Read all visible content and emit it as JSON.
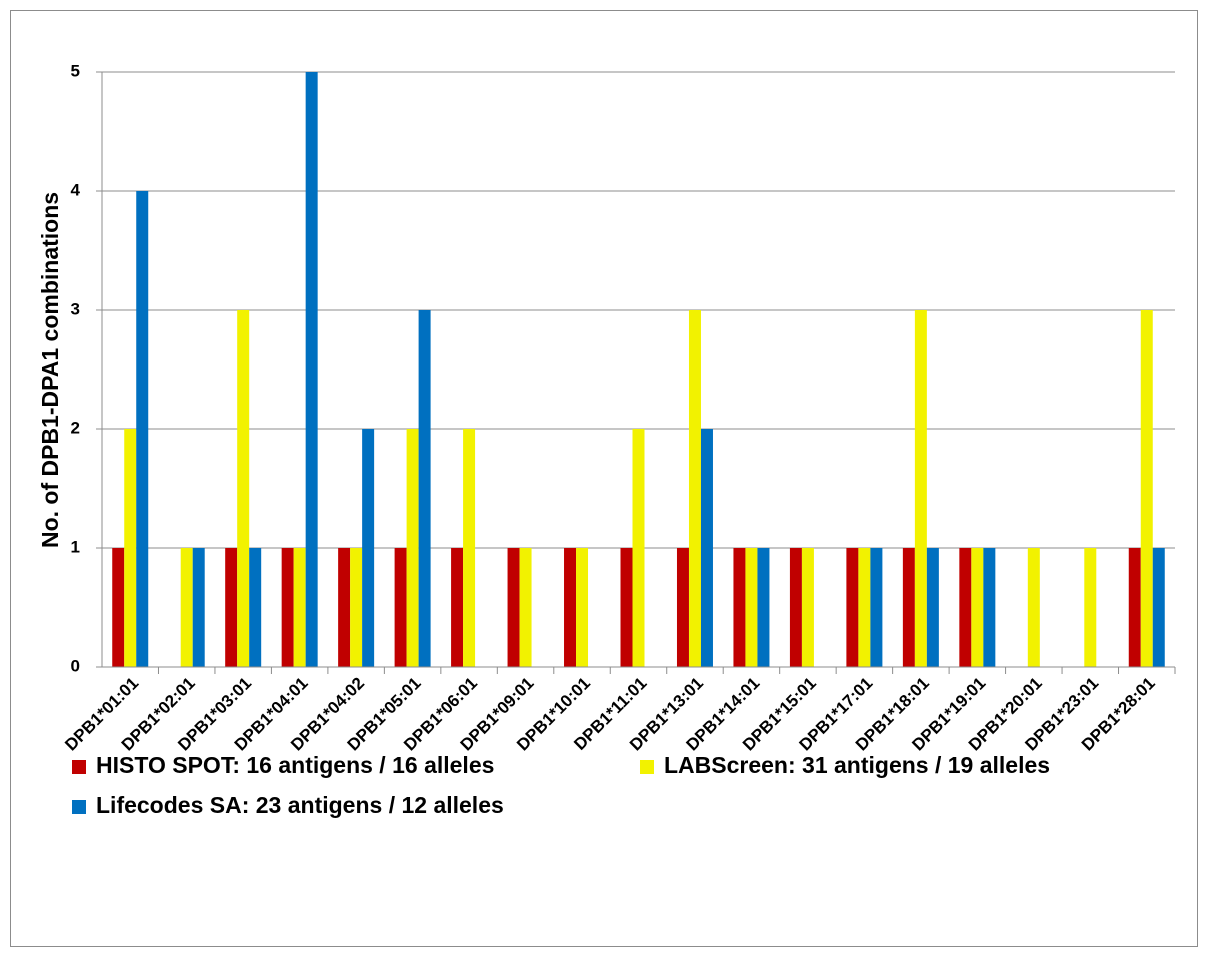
{
  "chart_data": {
    "type": "bar",
    "y_label": "No. of DPB1-DPA1 combinations",
    "categories": [
      "DPB1*01:01",
      "DPB1*02:01",
      "DPB1*03:01",
      "DPB1*04:01",
      "DPB1*04:02",
      "DPB1*05:01",
      "DPB1*06:01",
      "DPB1*09:01",
      "DPB1*10:01",
      "DPB1*11:01",
      "DPB1*13:01",
      "DPB1*14:01",
      "DPB1*15:01",
      "DPB1*17:01",
      "DPB1*18:01",
      "DPB1*19:01",
      "DPB1*20:01",
      "DPB1*23:01",
      "DPB1*28:01"
    ],
    "series": [
      {
        "name": "HISTO SPOT: 16 antigens / 16 alleles",
        "color": "#c00000",
        "values": [
          1,
          null,
          1,
          1,
          1,
          1,
          1,
          1,
          1,
          1,
          1,
          1,
          1,
          1,
          1,
          1,
          null,
          null,
          1
        ]
      },
      {
        "name": "LABScreen: 31 antigens / 19 alleles",
        "color": "#f2f200",
        "values": [
          2,
          1,
          3,
          1,
          1,
          2,
          2,
          1,
          1,
          2,
          3,
          1,
          1,
          1,
          3,
          1,
          1,
          1,
          3
        ]
      },
      {
        "name": "Lifecodes SA: 23 antigens / 12 alleles",
        "color": "#0070c0",
        "values": [
          4,
          1,
          1,
          5,
          2,
          3,
          null,
          null,
          null,
          null,
          2,
          1,
          null,
          1,
          1,
          1,
          null,
          null,
          1
        ]
      }
    ],
    "ylim": [
      0,
      5
    ],
    "yticks": [
      0,
      1,
      2,
      3,
      4,
      5
    ],
    "grid": true
  }
}
